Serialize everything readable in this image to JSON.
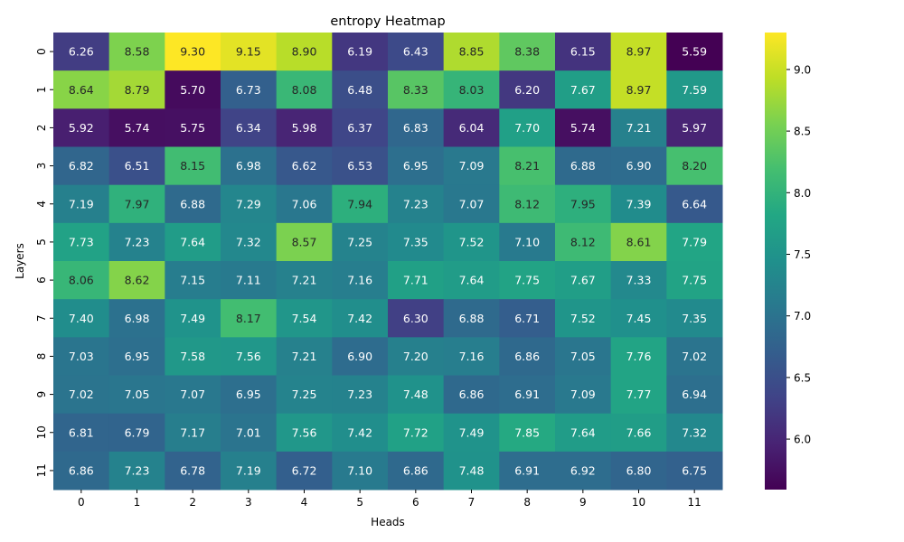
{
  "chart_data": {
    "type": "heatmap",
    "title": "entropy Heatmap",
    "xlabel": "Heads",
    "ylabel": "Layers",
    "x_categories": [
      "0",
      "1",
      "2",
      "3",
      "4",
      "5",
      "6",
      "7",
      "8",
      "9",
      "10",
      "11"
    ],
    "y_categories": [
      "0",
      "1",
      "2",
      "3",
      "4",
      "5",
      "6",
      "7",
      "8",
      "9",
      "10",
      "11"
    ],
    "colormap": "viridis",
    "colorbar": {
      "min": 5.59,
      "max": 9.3,
      "ticks": [
        6.0,
        6.5,
        7.0,
        7.5,
        8.0,
        8.5,
        9.0
      ],
      "tick_labels": [
        "6.0",
        "6.5",
        "7.0",
        "7.5",
        "8.0",
        "8.5",
        "9.0"
      ]
    },
    "values": [
      [
        6.26,
        8.58,
        9.3,
        9.15,
        8.9,
        6.19,
        6.43,
        8.85,
        8.38,
        6.15,
        8.97,
        5.59
      ],
      [
        8.64,
        8.79,
        5.7,
        6.73,
        8.08,
        6.48,
        8.33,
        8.03,
        6.2,
        7.67,
        8.97,
        7.59
      ],
      [
        5.92,
        5.74,
        5.75,
        6.34,
        5.98,
        6.37,
        6.83,
        6.04,
        7.7,
        5.74,
        7.21,
        5.97
      ],
      [
        6.82,
        6.51,
        8.15,
        6.98,
        6.62,
        6.53,
        6.95,
        7.09,
        8.21,
        6.88,
        6.9,
        8.2
      ],
      [
        7.19,
        7.97,
        6.88,
        7.29,
        7.06,
        7.94,
        7.23,
        7.07,
        8.12,
        7.95,
        7.39,
        6.64
      ],
      [
        7.73,
        7.23,
        7.64,
        7.32,
        8.57,
        7.25,
        7.35,
        7.52,
        7.1,
        8.12,
        8.61,
        7.79
      ],
      [
        8.06,
        8.62,
        7.15,
        7.11,
        7.21,
        7.16,
        7.71,
        7.64,
        7.75,
        7.67,
        7.33,
        7.75
      ],
      [
        7.4,
        6.98,
        7.49,
        8.17,
        7.54,
        7.42,
        6.3,
        6.88,
        6.71,
        7.52,
        7.45,
        7.35
      ],
      [
        7.03,
        6.95,
        7.58,
        7.56,
        7.21,
        6.9,
        7.2,
        7.16,
        6.86,
        7.05,
        7.76,
        7.02
      ],
      [
        7.02,
        7.05,
        7.07,
        6.95,
        7.25,
        7.23,
        7.48,
        6.86,
        6.91,
        7.09,
        7.77,
        6.94
      ],
      [
        6.81,
        6.79,
        7.17,
        7.01,
        7.56,
        7.42,
        7.72,
        7.49,
        7.85,
        7.64,
        7.66,
        7.32
      ],
      [
        6.86,
        7.23,
        6.78,
        7.19,
        6.72,
        7.1,
        6.86,
        7.48,
        6.91,
        6.92,
        6.8,
        6.75
      ]
    ],
    "value_format_decimals": 2,
    "grid": false,
    "legend": "colorbar-right"
  }
}
